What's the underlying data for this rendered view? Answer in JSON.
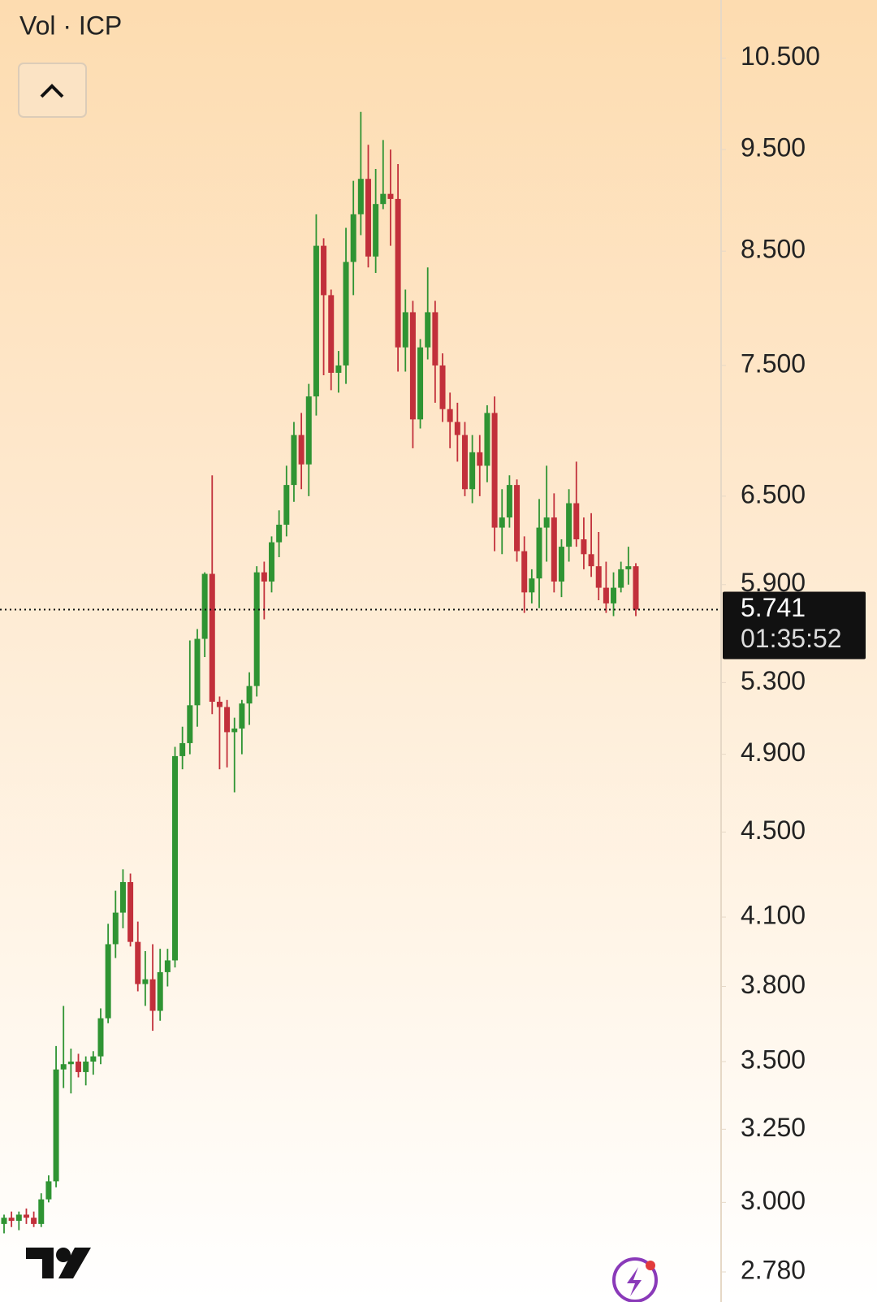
{
  "chart_data": {
    "type": "candlestick",
    "title": "Vol · ICP",
    "log_scale": true,
    "up_color": "#2f9433",
    "down_color": "#c2303b",
    "ylim": [
      2.69,
      11.19
    ],
    "yticks": [
      {
        "value": 10.5,
        "label": "10.500"
      },
      {
        "value": 9.5,
        "label": "9.500"
      },
      {
        "value": 8.5,
        "label": "8.500"
      },
      {
        "value": 7.5,
        "label": "7.500"
      },
      {
        "value": 6.5,
        "label": "6.500"
      },
      {
        "value": 5.9,
        "label": "5.900"
      },
      {
        "value": 5.3,
        "label": "5.300"
      },
      {
        "value": 4.9,
        "label": "4.900"
      },
      {
        "value": 4.5,
        "label": "4.500"
      },
      {
        "value": 4.1,
        "label": "4.100"
      },
      {
        "value": 3.8,
        "label": "3.800"
      },
      {
        "value": 3.5,
        "label": "3.500"
      },
      {
        "value": 3.25,
        "label": "3.250"
      },
      {
        "value": 3.0,
        "label": "3.000"
      },
      {
        "value": 2.78,
        "label": "2.780"
      }
    ],
    "last_price": 5.741,
    "countdown": "01:35:52",
    "open": [
      2.93,
      2.95,
      2.94,
      2.96,
      2.95,
      2.93,
      3.01,
      3.07,
      3.47,
      3.49,
      3.5,
      3.46,
      3.5,
      3.52,
      3.67,
      3.98,
      4.12,
      4.26,
      3.99,
      3.81,
      3.83,
      3.7,
      3.86,
      3.91,
      4.89,
      4.96,
      5.17,
      5.56,
      5.97,
      5.19,
      5.16,
      5.02,
      5.04,
      5.18,
      5.28,
      5.98,
      5.92,
      6.18,
      6.3,
      6.58,
      6.95,
      6.73,
      7.25,
      8.55,
      8.1,
      7.44,
      7.5,
      8.4,
      8.85,
      9.2,
      8.45,
      8.95,
      9.05,
      9.0,
      7.65,
      7.95,
      7.07,
      7.65,
      7.95,
      7.5,
      7.15,
      7.05,
      6.95,
      6.55,
      6.82,
      6.72,
      7.12,
      6.28,
      6.35,
      6.58,
      6.12,
      5.85,
      5.94,
      6.28,
      6.35,
      5.92,
      6.15,
      6.45,
      6.2,
      6.1,
      6.02,
      5.88,
      5.78,
      5.88,
      6.0,
      6.02
    ],
    "high": [
      2.96,
      2.97,
      2.97,
      2.98,
      2.97,
      3.03,
      3.09,
      3.56,
      3.72,
      3.55,
      3.53,
      3.52,
      3.54,
      3.71,
      4.07,
      4.22,
      4.32,
      4.3,
      4.08,
      3.95,
      3.98,
      3.96,
      3.96,
      4.94,
      5.05,
      5.55,
      5.62,
      5.98,
      6.65,
      5.22,
      5.2,
      5.1,
      5.2,
      5.36,
      6.02,
      6.05,
      6.22,
      6.4,
      6.72,
      7.05,
      7.12,
      7.35,
      8.85,
      8.62,
      8.15,
      7.62,
      8.72,
      9.18,
      9.9,
      9.55,
      9.3,
      9.6,
      9.5,
      9.35,
      8.15,
      8.05,
      7.72,
      8.35,
      8.05,
      7.6,
      7.28,
      7.2,
      7.05,
      6.95,
      6.95,
      7.18,
      7.25,
      6.55,
      6.65,
      6.62,
      6.22,
      6.0,
      6.48,
      6.72,
      6.52,
      6.2,
      6.55,
      6.75,
      6.35,
      6.38,
      6.25,
      6.05,
      5.98,
      6.05,
      6.15,
      6.04
    ],
    "low": [
      2.9,
      2.92,
      2.91,
      2.93,
      2.92,
      2.92,
      3.0,
      3.05,
      3.4,
      3.38,
      3.44,
      3.41,
      3.45,
      3.49,
      3.65,
      3.92,
      4.05,
      3.97,
      3.78,
      3.72,
      3.62,
      3.66,
      3.8,
      3.88,
      4.82,
      4.9,
      5.05,
      5.45,
      5.12,
      4.82,
      4.83,
      4.7,
      4.9,
      5.06,
      5.22,
      5.68,
      5.85,
      6.08,
      6.22,
      6.46,
      6.55,
      6.5,
      7.1,
      7.42,
      7.3,
      7.28,
      7.35,
      8.1,
      8.65,
      8.35,
      8.3,
      8.9,
      8.55,
      7.45,
      7.45,
      6.85,
      7.0,
      7.55,
      7.2,
      7.05,
      6.85,
      6.75,
      6.5,
      6.45,
      6.5,
      6.6,
      6.12,
      6.1,
      6.28,
      6.05,
      5.72,
      5.78,
      5.75,
      6.05,
      5.85,
      5.82,
      6.05,
      6.15,
      6.0,
      5.95,
      5.8,
      5.72,
      5.7,
      5.85,
      5.9,
      5.7
    ],
    "close": [
      2.95,
      2.94,
      2.96,
      2.95,
      2.93,
      3.01,
      3.07,
      3.47,
      3.49,
      3.5,
      3.46,
      3.5,
      3.52,
      3.67,
      3.98,
      4.12,
      4.26,
      3.99,
      3.81,
      3.83,
      3.7,
      3.86,
      3.91,
      4.89,
      4.96,
      5.17,
      5.56,
      5.97,
      5.19,
      5.16,
      5.02,
      5.04,
      5.18,
      5.28,
      5.98,
      5.92,
      6.18,
      6.3,
      6.58,
      6.95,
      6.73,
      7.25,
      8.55,
      8.1,
      7.44,
      7.5,
      8.4,
      8.85,
      9.2,
      8.45,
      8.95,
      9.05,
      9.0,
      7.65,
      7.95,
      7.07,
      7.65,
      7.95,
      7.5,
      7.15,
      7.05,
      6.95,
      6.55,
      6.82,
      6.72,
      7.12,
      6.28,
      6.35,
      6.58,
      6.12,
      5.85,
      5.94,
      6.28,
      6.35,
      5.92,
      6.15,
      6.45,
      6.2,
      6.1,
      6.02,
      5.88,
      5.78,
      5.88,
      6.0,
      6.02,
      5.741
    ]
  }
}
